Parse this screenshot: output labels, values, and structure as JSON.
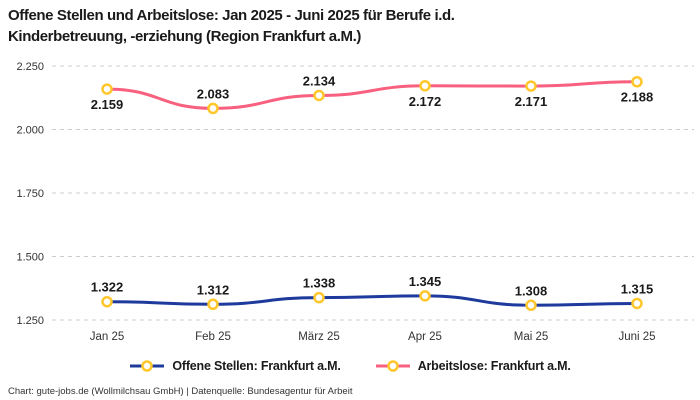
{
  "title": "Offene Stellen und Arbeitslose: Jan 2025 - Juni 2025 für Berufe i.d.\nKinderbetreuung, -erziehung (Region Frankfurt a.M.)",
  "footer": "Chart: gute-jobs.de (Wollmilchsau GmbH) | Datenquelle: Bundesagentur für Arbeit",
  "colors": {
    "title_text": "#1a1a1a",
    "axis_text": "#333333",
    "data_label_text": "#1a1a1a",
    "gridline": "#cccccc",
    "marker_fill": "#ffffff",
    "marker_stroke": "#ffc72c"
  },
  "chart_data": {
    "type": "line",
    "title": "Offene Stellen und Arbeitslose: Jan 2025 - Juni 2025 für Berufe i.d. Kinderbetreuung, -erziehung (Region Frankfurt a.M.)",
    "categories": [
      "Jan 25",
      "Feb 25",
      "März 25",
      "Apr 25",
      "Mai 25",
      "Juni 25"
    ],
    "xlabel": "",
    "ylabel": "",
    "ylim": [
      1250,
      2250
    ],
    "y_ticks": [
      2250,
      2000,
      1750,
      1500,
      1250
    ],
    "y_tick_labels": [
      "2.250",
      "2.000",
      "1.750",
      "1.500",
      "1.250"
    ],
    "grid": "horizontal-dashed",
    "legend_position": "bottom",
    "marker_style": "open-circle-yellow",
    "series": [
      {
        "name": "Offene Stellen: Frankfurt a.M.",
        "color": "#1d3a9c",
        "values": [
          1322,
          1312,
          1338,
          1345,
          1308,
          1315
        ],
        "labels": [
          "1.322",
          "1.312",
          "1.338",
          "1.345",
          "1.308",
          "1.315"
        ],
        "label_positions": [
          "above",
          "above",
          "above",
          "above",
          "above",
          "above"
        ]
      },
      {
        "name": "Arbeitslose: Frankfurt a.M.",
        "color": "#f8607f",
        "values": [
          2159,
          2083,
          2134,
          2172,
          2171,
          2188
        ],
        "labels": [
          "2.159",
          "2.083",
          "2.134",
          "2.172",
          "2.171",
          "2.188"
        ],
        "label_positions": [
          "below",
          "above",
          "above",
          "below",
          "below",
          "below"
        ]
      }
    ]
  }
}
